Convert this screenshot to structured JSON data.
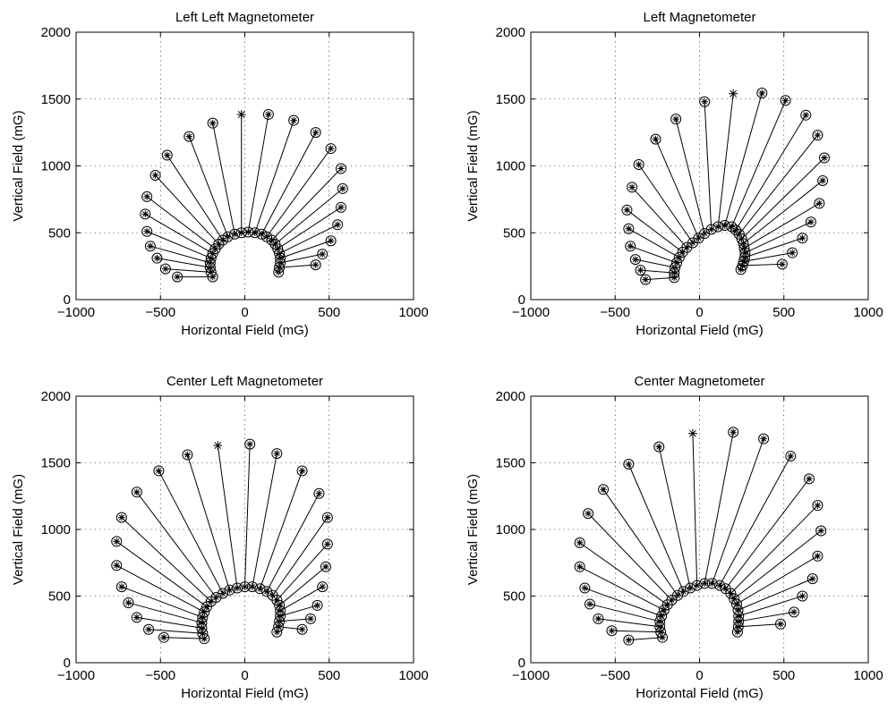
{
  "chart_data": [
    {
      "type": "scatter",
      "title": "Left Left Magnetometer",
      "xlabel": "Horizontal Field (mG)",
      "ylabel": "Vertical Field (mG)",
      "xlim": [
        -1000,
        1000
      ],
      "ylim": [
        0,
        2000
      ],
      "xticks": [
        -1000,
        -500,
        0,
        500,
        1000
      ],
      "yticks": [
        0,
        500,
        1000,
        1500,
        2000
      ],
      "grid": true,
      "outer_marker": "circle-star",
      "highlight_marker": "star",
      "inner_points": [
        [
          -190,
          170
        ],
        [
          -200,
          205
        ],
        [
          -205,
          240
        ],
        [
          -205,
          275
        ],
        [
          -200,
          310
        ],
        [
          -190,
          345
        ],
        [
          -175,
          380
        ],
        [
          -155,
          415
        ],
        [
          -130,
          445
        ],
        [
          -100,
          470
        ],
        [
          -60,
          490
        ],
        [
          -20,
          500
        ],
        [
          20,
          505
        ],
        [
          60,
          500
        ],
        [
          100,
          490
        ],
        [
          130,
          470
        ],
        [
          160,
          445
        ],
        [
          180,
          415
        ],
        [
          195,
          380
        ],
        [
          205,
          345
        ],
        [
          210,
          310
        ],
        [
          210,
          275
        ],
        [
          205,
          240
        ],
        [
          200,
          205
        ]
      ],
      "outer_points": [
        [
          -400,
          170
        ],
        [
          -470,
          230
        ],
        [
          -520,
          310
        ],
        [
          -560,
          400
        ],
        [
          -580,
          510
        ],
        [
          -590,
          640
        ],
        [
          -580,
          770
        ],
        [
          -530,
          930
        ],
        [
          -460,
          1080
        ],
        [
          -330,
          1220
        ],
        [
          -190,
          1320
        ],
        [
          -20,
          1385
        ],
        [
          140,
          1385
        ],
        [
          290,
          1340
        ],
        [
          420,
          1250
        ],
        [
          510,
          1130
        ],
        [
          570,
          980
        ],
        [
          580,
          830
        ],
        [
          570,
          690
        ],
        [
          550,
          560
        ],
        [
          510,
          440
        ],
        [
          460,
          340
        ],
        [
          420,
          260
        ]
      ],
      "highlight_index": 11
    },
    {
      "type": "scatter",
      "title": "Left Magnetometer",
      "xlabel": "Horizontal Field (mG)",
      "ylabel": "Vertical Field (mG)",
      "xlim": [
        -1000,
        1000
      ],
      "ylim": [
        0,
        2000
      ],
      "xticks": [
        -1000,
        -500,
        0,
        500,
        1000
      ],
      "yticks": [
        0,
        500,
        1000,
        1500,
        2000
      ],
      "grid": true,
      "outer_marker": "circle-star",
      "highlight_marker": "star",
      "inner_points": [
        [
          -150,
          165
        ],
        [
          -150,
          200
        ],
        [
          -145,
          240
        ],
        [
          -135,
          275
        ],
        [
          -120,
          315
        ],
        [
          -100,
          355
        ],
        [
          -75,
          390
        ],
        [
          -40,
          425
        ],
        [
          -5,
          460
        ],
        [
          30,
          495
        ],
        [
          70,
          525
        ],
        [
          110,
          545
        ],
        [
          150,
          555
        ],
        [
          190,
          545
        ],
        [
          215,
          520
        ],
        [
          235,
          490
        ],
        [
          250,
          455
        ],
        [
          260,
          420
        ],
        [
          265,
          385
        ],
        [
          270,
          350
        ],
        [
          268,
          315
        ],
        [
          262,
          285
        ],
        [
          255,
          255
        ],
        [
          245,
          225
        ]
      ],
      "outer_points": [
        [
          -320,
          150
        ],
        [
          -350,
          220
        ],
        [
          -380,
          300
        ],
        [
          -410,
          400
        ],
        [
          -420,
          530
        ],
        [
          -430,
          670
        ],
        [
          -400,
          840
        ],
        [
          -360,
          1010
        ],
        [
          -260,
          1200
        ],
        [
          -140,
          1350
        ],
        [
          30,
          1480
        ],
        [
          200,
          1540
        ],
        [
          370,
          1545
        ],
        [
          510,
          1490
        ],
        [
          630,
          1380
        ],
        [
          700,
          1230
        ],
        [
          740,
          1060
        ],
        [
          730,
          890
        ],
        [
          710,
          720
        ],
        [
          660,
          580
        ],
        [
          610,
          460
        ],
        [
          550,
          350
        ],
        [
          490,
          265
        ]
      ],
      "highlight_index": 11
    },
    {
      "type": "scatter",
      "title": "Center Left Magnetometer",
      "xlabel": "Horizontal Field (mG)",
      "ylabel": "Vertical Field (mG)",
      "xlim": [
        -1000,
        1000
      ],
      "ylim": [
        0,
        2000
      ],
      "xticks": [
        -1000,
        -500,
        0,
        500,
        1000
      ],
      "yticks": [
        0,
        500,
        1000,
        1500,
        2000
      ],
      "grid": true,
      "outer_marker": "circle-star",
      "highlight_marker": "star",
      "inner_points": [
        [
          -240,
          180
        ],
        [
          -250,
          220
        ],
        [
          -255,
          260
        ],
        [
          -255,
          300
        ],
        [
          -250,
          340
        ],
        [
          -240,
          380
        ],
        [
          -225,
          420
        ],
        [
          -200,
          460
        ],
        [
          -170,
          490
        ],
        [
          -130,
          520
        ],
        [
          -90,
          545
        ],
        [
          -45,
          560
        ],
        [
          0,
          570
        ],
        [
          45,
          570
        ],
        [
          90,
          555
        ],
        [
          130,
          535
        ],
        [
          165,
          505
        ],
        [
          190,
          470
        ],
        [
          205,
          430
        ],
        [
          210,
          390
        ],
        [
          210,
          350
        ],
        [
          205,
          310
        ],
        [
          200,
          270
        ],
        [
          190,
          230
        ]
      ],
      "outer_points": [
        [
          -480,
          190
        ],
        [
          -570,
          250
        ],
        [
          -640,
          340
        ],
        [
          -690,
          450
        ],
        [
          -730,
          570
        ],
        [
          -760,
          730
        ],
        [
          -760,
          910
        ],
        [
          -730,
          1090
        ],
        [
          -640,
          1280
        ],
        [
          -510,
          1440
        ],
        [
          -340,
          1560
        ],
        [
          -160,
          1630
        ],
        [
          30,
          1640
        ],
        [
          190,
          1570
        ],
        [
          340,
          1440
        ],
        [
          440,
          1270
        ],
        [
          490,
          1090
        ],
        [
          490,
          890
        ],
        [
          480,
          720
        ],
        [
          460,
          570
        ],
        [
          430,
          430
        ],
        [
          390,
          330
        ],
        [
          340,
          250
        ]
      ],
      "highlight_index": 11
    },
    {
      "type": "scatter",
      "title": "Center Magnetometer",
      "xlabel": "Horizontal Field (mG)",
      "ylabel": "Vertical Field (mG)",
      "xlim": [
        -1000,
        1000
      ],
      "ylim": [
        0,
        2000
      ],
      "xticks": [
        -1000,
        -500,
        0,
        500,
        1000
      ],
      "yticks": [
        0,
        500,
        1000,
        1500,
        2000
      ],
      "grid": true,
      "outer_marker": "circle-star",
      "highlight_marker": "star",
      "inner_points": [
        [
          -220,
          190
        ],
        [
          -230,
          230
        ],
        [
          -235,
          270
        ],
        [
          -235,
          310
        ],
        [
          -225,
          350
        ],
        [
          -210,
          395
        ],
        [
          -190,
          435
        ],
        [
          -165,
          470
        ],
        [
          -130,
          505
        ],
        [
          -95,
          535
        ],
        [
          -55,
          560
        ],
        [
          -15,
          580
        ],
        [
          30,
          595
        ],
        [
          75,
          595
        ],
        [
          120,
          580
        ],
        [
          155,
          555
        ],
        [
          185,
          520
        ],
        [
          205,
          480
        ],
        [
          220,
          440
        ],
        [
          228,
          395
        ],
        [
          232,
          350
        ],
        [
          232,
          310
        ],
        [
          230,
          270
        ],
        [
          225,
          230
        ]
      ],
      "outer_points": [
        [
          -420,
          170
        ],
        [
          -520,
          240
        ],
        [
          -600,
          330
        ],
        [
          -650,
          440
        ],
        [
          -680,
          560
        ],
        [
          -710,
          720
        ],
        [
          -710,
          900
        ],
        [
          -660,
          1120
        ],
        [
          -570,
          1300
        ],
        [
          -420,
          1490
        ],
        [
          -240,
          1620
        ],
        [
          -40,
          1720
        ],
        [
          200,
          1730
        ],
        [
          380,
          1680
        ],
        [
          540,
          1550
        ],
        [
          650,
          1380
        ],
        [
          700,
          1180
        ],
        [
          720,
          990
        ],
        [
          700,
          800
        ],
        [
          670,
          630
        ],
        [
          610,
          500
        ],
        [
          560,
          380
        ],
        [
          480,
          290
        ]
      ],
      "highlight_index": 11
    }
  ]
}
